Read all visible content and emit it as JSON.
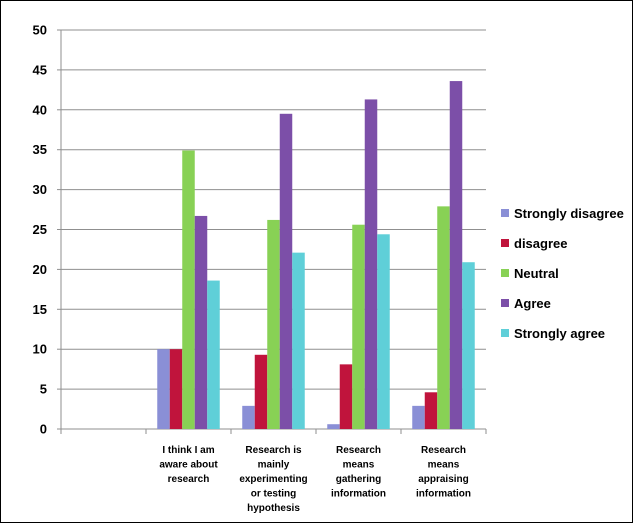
{
  "chart_data": {
    "type": "bar",
    "title": "",
    "xlabel": "",
    "ylabel": "",
    "ylim": [
      0,
      50
    ],
    "yticks": [
      0,
      5,
      10,
      15,
      20,
      25,
      30,
      35,
      40,
      45,
      50
    ],
    "grid": true,
    "legend_position": "right",
    "categories": [
      "",
      "I think I am aware about research",
      "Research is mainly experimenting or testing hypothesis",
      "Research means gathering information",
      "Research means appraising information"
    ],
    "category_lines": [
      [],
      [
        "I think I am",
        "aware about",
        "research"
      ],
      [
        "Research is",
        "mainly",
        "experimenting",
        "or testing",
        "hypothesis"
      ],
      [
        "Research",
        "means",
        "gathering",
        "information"
      ],
      [
        "Research",
        "means",
        "appraising",
        "information"
      ]
    ],
    "series": [
      {
        "name": "Strongly disagree",
        "color": "#8a8fd6",
        "values": [
          null,
          10,
          2.9,
          0.6,
          2.9
        ]
      },
      {
        "name": "disagree",
        "color": "#c0143c",
        "values": [
          null,
          10,
          9.3,
          8.1,
          4.6
        ]
      },
      {
        "name": "Neutral",
        "color": "#88d155",
        "values": [
          null,
          34.9,
          26.2,
          25.6,
          27.9
        ]
      },
      {
        "name": "Agree",
        "color": "#7c4fa8",
        "values": [
          null,
          26.7,
          39.5,
          41.3,
          43.6
        ]
      },
      {
        "name": "Strongly agree",
        "color": "#5fcfd8",
        "values": [
          null,
          18.6,
          22.1,
          24.4,
          20.9
        ]
      }
    ]
  }
}
